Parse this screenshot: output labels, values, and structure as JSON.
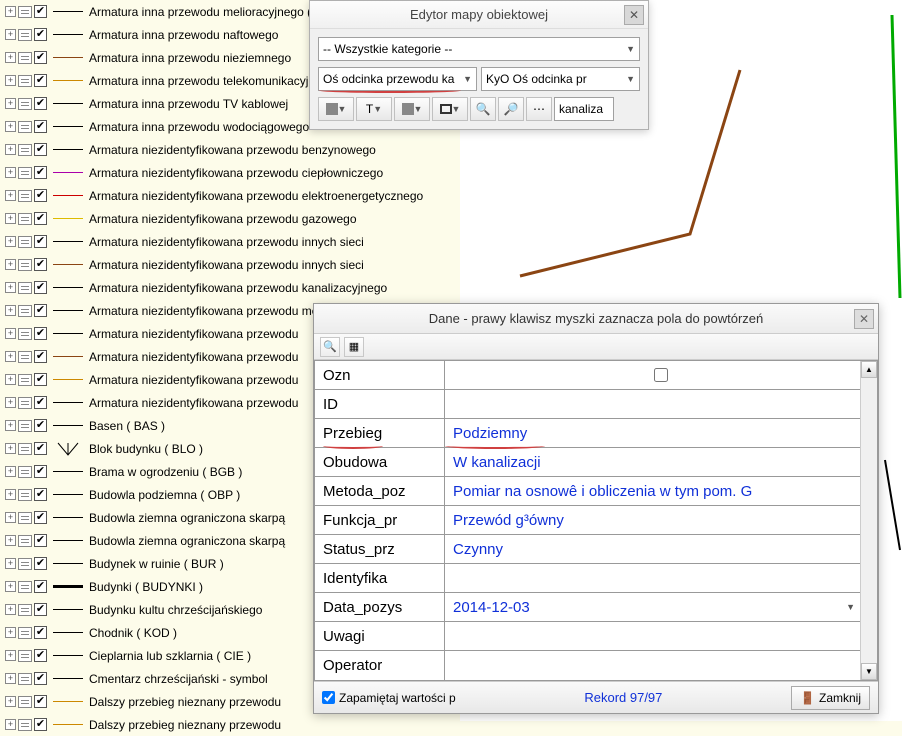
{
  "tree": {
    "items": [
      {
        "label": "Armatura inna przewodu melioracyjnego ( MXJ )",
        "color": "#000000"
      },
      {
        "label": "Armatura inna przewodu naftowego",
        "color": "#000000"
      },
      {
        "label": "Armatura inna przewodu nieziemnego",
        "color": "#8b4513"
      },
      {
        "label": "Armatura inna przewodu telekomunikacyjnego",
        "color": "#cc8800"
      },
      {
        "label": "Armatura inna przewodu TV kablowej",
        "color": "#000000"
      },
      {
        "label": "Armatura inna przewodu wodociągowego",
        "color": "#000000"
      },
      {
        "label": "Armatura niezidentyfikowana przewodu benzynowego",
        "color": "#000000"
      },
      {
        "label": "Armatura niezidentyfikowana przewodu ciepłowniczego",
        "color": "#aa00aa"
      },
      {
        "label": "Armatura niezidentyfikowana przewodu elektroenergetycznego",
        "color": "#cc0000"
      },
      {
        "label": "Armatura niezidentyfikowana przewodu gazowego",
        "color": "#ddbb00"
      },
      {
        "label": "Armatura niezidentyfikowana przewodu innych sieci",
        "color": "#000000"
      },
      {
        "label": "Armatura niezidentyfikowana przewodu innych sieci",
        "color": "#8b4513"
      },
      {
        "label": "Armatura niezidentyfikowana przewodu kanalizacyjnego",
        "color": "#000000"
      },
      {
        "label": "Armatura niezidentyfikowana przewodu melioracyjnego",
        "color": "#000000"
      },
      {
        "label": "Armatura niezidentyfikowana przewodu",
        "color": "#000000"
      },
      {
        "label": "Armatura niezidentyfikowana przewodu",
        "color": "#8b4513"
      },
      {
        "label": "Armatura niezidentyfikowana przewodu",
        "color": "#cc8800"
      },
      {
        "label": "Armatura niezidentyfikowana przewodu",
        "color": "#000000"
      },
      {
        "label": "Basen ( BAS )",
        "color": "#000000"
      },
      {
        "label": "Blok budynku ( BLO )",
        "symbol": "blo"
      },
      {
        "label": "Brama w ogrodzeniu ( BGB )",
        "color": "#000000"
      },
      {
        "label": "Budowla podziemna ( OBP )",
        "color": "#000000"
      },
      {
        "label": "Budowla ziemna ograniczona skarpą",
        "color": "#000000"
      },
      {
        "label": "Budowla ziemna ograniczona skarpą",
        "color": "#000000"
      },
      {
        "label": "Budynek w ruinie ( BUR )",
        "color": "#000000"
      },
      {
        "label": "Budynki ( BUDYNKI )",
        "color": "#000000",
        "bold": true
      },
      {
        "label": "Budynku kultu chrześcijańskiego",
        "color": "#000000"
      },
      {
        "label": "Chodnik ( KOD )",
        "color": "#000000"
      },
      {
        "label": "Cieplarnia lub szklarnia ( CIE )",
        "color": "#000000"
      },
      {
        "label": "Cmentarz chrześcijański - symbol",
        "color": "#000000"
      },
      {
        "label": "Dalszy przebieg nieznany przewodu",
        "color": "#cc8800"
      },
      {
        "label": "Dalszy przebieg nieznany przewodu",
        "color": "#cc8800"
      }
    ]
  },
  "editor": {
    "title": "Edytor mapy obiektowej",
    "categories": "-- Wszystkie kategorie --",
    "select1": "Oś odcinka przewodu ka",
    "select2": "KyO Oś odcinka pr",
    "search": "kanaliza"
  },
  "data_dialog": {
    "title": "Dane - prawy klawisz myszki zaznacza pola do powtórzeń",
    "rows": [
      {
        "key": "Ozn",
        "val": "",
        "type": "check"
      },
      {
        "key": "ID",
        "val": ""
      },
      {
        "key": "Przebieg",
        "val": "Podziemny",
        "hl_key": true,
        "hl_val": true
      },
      {
        "key": "Obudowa",
        "val": "W kanalizacji"
      },
      {
        "key": "Metoda_poz",
        "val": "Pomiar na osnowê i obliczenia w tym pom. G"
      },
      {
        "key": "Funkcja_pr",
        "val": "Przewód g³ówny"
      },
      {
        "key": "Status_prz",
        "val": "Czynny"
      },
      {
        "key": "Identyfika",
        "val": ""
      },
      {
        "key": "Data_pozys",
        "val": "2014-12-03",
        "dropdown": true
      },
      {
        "key": "Uwagi",
        "val": ""
      },
      {
        "key": "Operator",
        "val": ""
      }
    ],
    "remember": "Zapamiętaj wartości p",
    "record": "Rekord 97/97",
    "close_btn": "Zamknij"
  },
  "map": {
    "line1_color": "#8b4513",
    "line2_color": "#00aa00"
  }
}
